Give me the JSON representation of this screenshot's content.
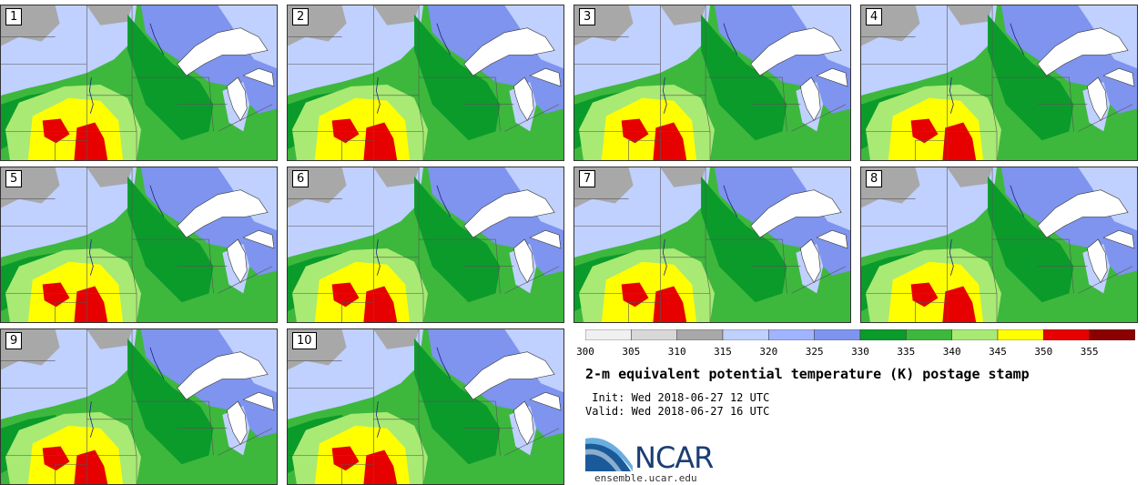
{
  "panels": [
    {
      "label": "1"
    },
    {
      "label": "2"
    },
    {
      "label": "3"
    },
    {
      "label": "4"
    },
    {
      "label": "5"
    },
    {
      "label": "6"
    },
    {
      "label": "7"
    },
    {
      "label": "8"
    },
    {
      "label": "9"
    },
    {
      "label": "10"
    }
  ],
  "colorbar": {
    "ticks": [
      "300",
      "305",
      "310",
      "315",
      "320",
      "325",
      "330",
      "335",
      "340",
      "345",
      "350",
      "355"
    ],
    "colors": [
      "#f0f0f0",
      "#d8d8d8",
      "#a8a8a8",
      "#c0d0ff",
      "#a0b4ff",
      "#7e94ee",
      "#0b9b2b",
      "#3db83d",
      "#a8ea74",
      "#ffff00",
      "#e60000",
      "#8b0000"
    ]
  },
  "title": "2-m equivalent potential temperature (K) postage stamp",
  "init_line": " Init: Wed 2018-06-27 12 UTC",
  "valid_line": "Valid: Wed 2018-06-27 16 UTC",
  "logo_text": "NCAR",
  "site": "ensemble.ucar.edu"
}
